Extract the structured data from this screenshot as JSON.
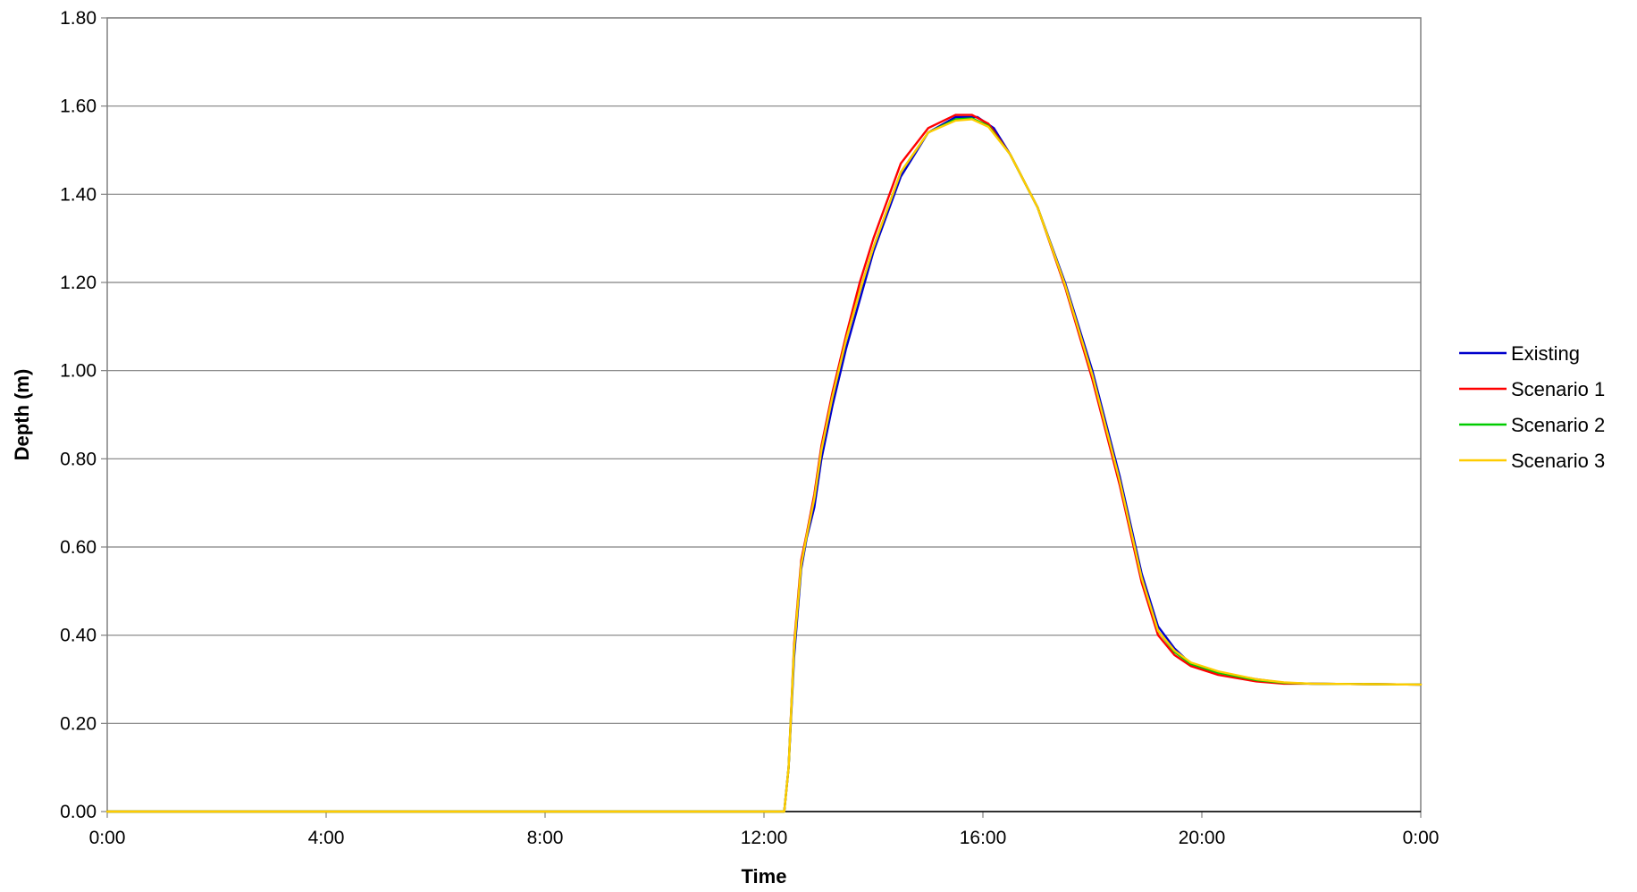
{
  "chart_data": {
    "type": "line",
    "title": "",
    "xlabel": "Time",
    "ylabel": "Depth (m)",
    "xlim": [
      0,
      24
    ],
    "ylim": [
      0,
      1.8
    ],
    "x_ticks": [
      {
        "value": 0,
        "label": "0:00"
      },
      {
        "value": 4,
        "label": "4:00"
      },
      {
        "value": 8,
        "label": "8:00"
      },
      {
        "value": 12,
        "label": "12:00"
      },
      {
        "value": 16,
        "label": "16:00"
      },
      {
        "value": 20,
        "label": "20:00"
      },
      {
        "value": 24,
        "label": "0:00"
      }
    ],
    "y_ticks": [
      {
        "value": 0.0,
        "label": "0.00"
      },
      {
        "value": 0.2,
        "label": "0.20"
      },
      {
        "value": 0.4,
        "label": "0.40"
      },
      {
        "value": 0.6,
        "label": "0.60"
      },
      {
        "value": 0.8,
        "label": "0.80"
      },
      {
        "value": 1.0,
        "label": "1.00"
      },
      {
        "value": 1.2,
        "label": "1.20"
      },
      {
        "value": 1.4,
        "label": "1.40"
      },
      {
        "value": 1.6,
        "label": "1.60"
      },
      {
        "value": 1.8,
        "label": "1.80"
      }
    ],
    "grid": "horizontal",
    "legend_position": "right",
    "series": [
      {
        "name": "Existing",
        "color": "#0000cc",
        "points": [
          [
            0,
            0
          ],
          [
            12.37,
            0
          ],
          [
            12.45,
            0.1
          ],
          [
            12.55,
            0.35
          ],
          [
            12.68,
            0.55
          ],
          [
            12.78,
            0.62
          ],
          [
            12.92,
            0.69
          ],
          [
            13.05,
            0.8
          ],
          [
            13.25,
            0.92
          ],
          [
            13.5,
            1.05
          ],
          [
            13.75,
            1.16
          ],
          [
            14.0,
            1.27
          ],
          [
            14.5,
            1.44
          ],
          [
            15.0,
            1.54
          ],
          [
            15.5,
            1.575
          ],
          [
            15.9,
            1.575
          ],
          [
            16.2,
            1.55
          ],
          [
            16.5,
            1.49
          ],
          [
            17.0,
            1.37
          ],
          [
            17.5,
            1.2
          ],
          [
            18.0,
            1.0
          ],
          [
            18.5,
            0.76
          ],
          [
            18.9,
            0.54
          ],
          [
            19.2,
            0.42
          ],
          [
            19.5,
            0.37
          ],
          [
            19.8,
            0.335
          ],
          [
            20.3,
            0.315
          ],
          [
            21.0,
            0.3
          ],
          [
            21.5,
            0.292
          ],
          [
            22.0,
            0.29
          ],
          [
            24.0,
            0.288
          ]
        ]
      },
      {
        "name": "Scenario 1",
        "color": "#ff0000",
        "points": [
          [
            0,
            0
          ],
          [
            12.37,
            0
          ],
          [
            12.45,
            0.1
          ],
          [
            12.55,
            0.38
          ],
          [
            12.68,
            0.57
          ],
          [
            12.78,
            0.63
          ],
          [
            12.92,
            0.72
          ],
          [
            13.05,
            0.83
          ],
          [
            13.25,
            0.95
          ],
          [
            13.5,
            1.08
          ],
          [
            13.75,
            1.2
          ],
          [
            14.0,
            1.3
          ],
          [
            14.5,
            1.47
          ],
          [
            15.0,
            1.55
          ],
          [
            15.5,
            1.58
          ],
          [
            15.8,
            1.58
          ],
          [
            16.1,
            1.56
          ],
          [
            16.5,
            1.49
          ],
          [
            17.0,
            1.37
          ],
          [
            17.5,
            1.19
          ],
          [
            18.0,
            0.98
          ],
          [
            18.5,
            0.74
          ],
          [
            18.9,
            0.52
          ],
          [
            19.2,
            0.4
          ],
          [
            19.5,
            0.355
          ],
          [
            19.8,
            0.33
          ],
          [
            20.3,
            0.31
          ],
          [
            21.0,
            0.295
          ],
          [
            21.5,
            0.29
          ],
          [
            22.0,
            0.29
          ],
          [
            24.0,
            0.288
          ]
        ]
      },
      {
        "name": "Scenario 2",
        "color": "#00cc00",
        "points": [
          [
            0,
            0
          ],
          [
            12.37,
            0
          ],
          [
            12.45,
            0.1
          ],
          [
            12.55,
            0.37
          ],
          [
            12.68,
            0.56
          ],
          [
            12.78,
            0.625
          ],
          [
            12.92,
            0.71
          ],
          [
            13.05,
            0.82
          ],
          [
            13.25,
            0.94
          ],
          [
            13.5,
            1.07
          ],
          [
            13.75,
            1.18
          ],
          [
            14.0,
            1.28
          ],
          [
            14.5,
            1.45
          ],
          [
            15.0,
            1.54
          ],
          [
            15.5,
            1.57
          ],
          [
            15.8,
            1.572
          ],
          [
            16.1,
            1.555
          ],
          [
            16.5,
            1.49
          ],
          [
            17.0,
            1.37
          ],
          [
            17.5,
            1.195
          ],
          [
            18.0,
            0.99
          ],
          [
            18.5,
            0.75
          ],
          [
            18.9,
            0.53
          ],
          [
            19.2,
            0.41
          ],
          [
            19.5,
            0.362
          ],
          [
            19.8,
            0.335
          ],
          [
            20.3,
            0.315
          ],
          [
            21.0,
            0.298
          ],
          [
            21.5,
            0.292
          ],
          [
            22.0,
            0.29
          ],
          [
            24.0,
            0.288
          ]
        ]
      },
      {
        "name": "Scenario 3",
        "color": "#ffcc00",
        "points": [
          [
            0,
            0
          ],
          [
            12.37,
            0
          ],
          [
            12.45,
            0.1
          ],
          [
            12.55,
            0.37
          ],
          [
            12.68,
            0.56
          ],
          [
            12.78,
            0.625
          ],
          [
            12.92,
            0.71
          ],
          [
            13.05,
            0.82
          ],
          [
            13.25,
            0.94
          ],
          [
            13.5,
            1.07
          ],
          [
            13.75,
            1.18
          ],
          [
            14.0,
            1.28
          ],
          [
            14.5,
            1.45
          ],
          [
            15.0,
            1.54
          ],
          [
            15.5,
            1.567
          ],
          [
            15.8,
            1.57
          ],
          [
            16.1,
            1.553
          ],
          [
            16.5,
            1.49
          ],
          [
            17.0,
            1.37
          ],
          [
            17.5,
            1.195
          ],
          [
            18.0,
            0.99
          ],
          [
            18.5,
            0.75
          ],
          [
            18.9,
            0.53
          ],
          [
            19.2,
            0.41
          ],
          [
            19.5,
            0.365
          ],
          [
            19.8,
            0.338
          ],
          [
            20.3,
            0.318
          ],
          [
            21.0,
            0.3
          ],
          [
            21.5,
            0.293
          ],
          [
            22.0,
            0.29
          ],
          [
            24.0,
            0.288
          ]
        ]
      }
    ]
  }
}
